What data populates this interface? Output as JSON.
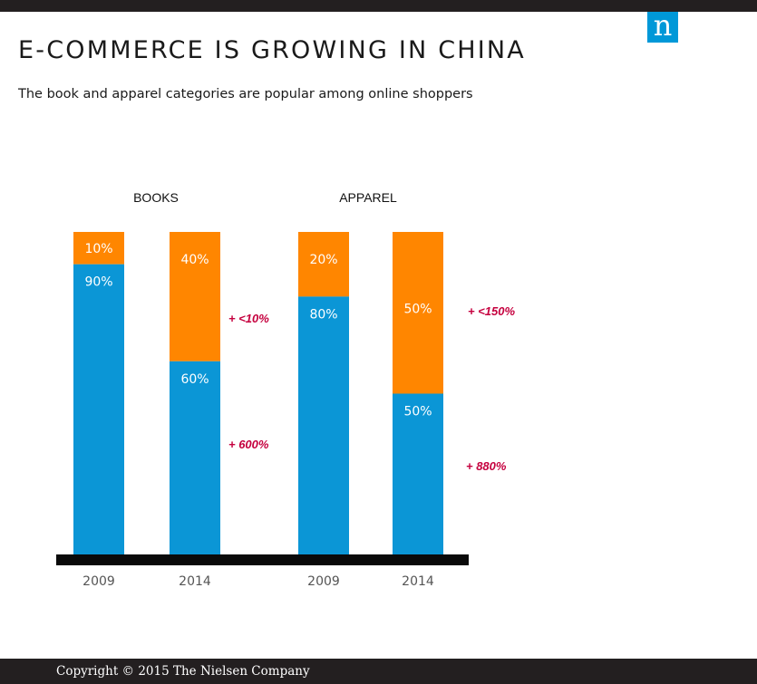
{
  "header": {
    "title": "E-COMMERCE IS GROWING IN CHINA",
    "subtitle": "The book and apparel categories are popular among online shoppers",
    "logo_letter": "n"
  },
  "chart_data": {
    "type": "bar",
    "stacked": true,
    "percent_stacked": true,
    "groups": [
      {
        "name": "BOOKS",
        "bars": [
          {
            "year": "2009",
            "offline": 90,
            "online": 10,
            "offline_label": "90%",
            "online_label": "10%"
          },
          {
            "year": "2014",
            "offline": 60,
            "online": 40,
            "offline_label": "60%",
            "online_label": "40%"
          }
        ],
        "growth_online": "+ <10%",
        "growth_offline": "+ 600%"
      },
      {
        "name": "APPAREL",
        "bars": [
          {
            "year": "2009",
            "offline": 80,
            "online": 20,
            "offline_label": "80%",
            "online_label": "20%"
          },
          {
            "year": "2014",
            "offline": 50,
            "online": 50,
            "offline_label": "50%",
            "online_label": "50%"
          }
        ],
        "growth_online": "+ <150%",
        "growth_offline": "+ 880%"
      }
    ],
    "ylim": [
      0,
      100
    ],
    "colors": {
      "offline": "#0b96d6",
      "online": "#ff8600",
      "growth": "#c5003e",
      "baseline": "#0a0a0a",
      "year_label": "#555555"
    }
  },
  "footer": {
    "copyright": "Copyright © 2015 The Nielsen Company"
  }
}
